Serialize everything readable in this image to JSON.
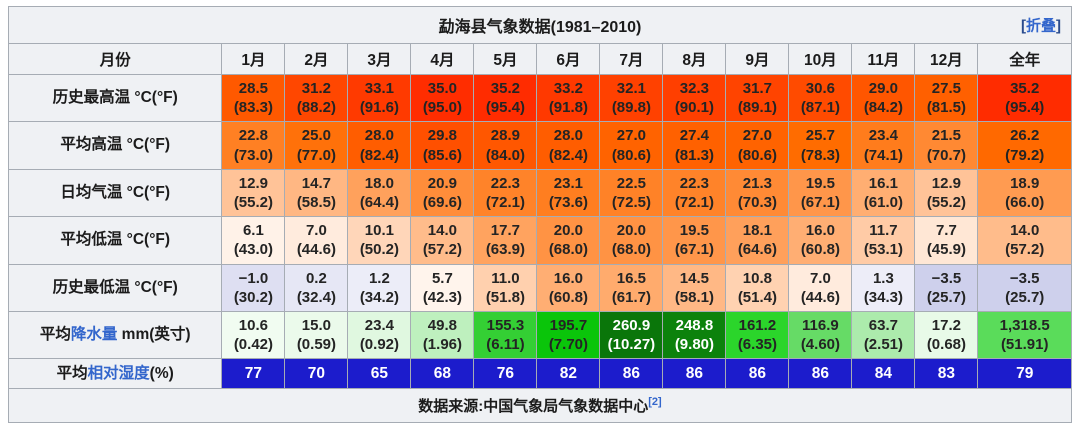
{
  "title": {
    "text": "勐海县气象数据(1981–2010)",
    "collapse_label": "折叠",
    "bracket_open": "[",
    "bracket_close": "]"
  },
  "header": {
    "month_label": "月份",
    "columns": [
      "1月",
      "2月",
      "3月",
      "4月",
      "5月",
      "6月",
      "7月",
      "8月",
      "9月",
      "10月",
      "11月",
      "12月",
      "全年"
    ]
  },
  "rows": [
    {
      "label": {
        "prefix": "历史最高温 °C(°F)"
      },
      "cells": [
        {
          "v": "28.5",
          "s": "(83.3)",
          "bg": "#FF5900"
        },
        {
          "v": "31.2",
          "s": "(88.2)",
          "bg": "#FF4700"
        },
        {
          "v": "33.1",
          "s": "(91.6)",
          "bg": "#FF3A00"
        },
        {
          "v": "35.0",
          "s": "(95.0)",
          "bg": "#FF2D00"
        },
        {
          "v": "35.2",
          "s": "(95.4)",
          "bg": "#FF2C00"
        },
        {
          "v": "33.2",
          "s": "(91.8)",
          "bg": "#FF3900"
        },
        {
          "v": "32.1",
          "s": "(89.8)",
          "bg": "#FF4100"
        },
        {
          "v": "32.3",
          "s": "(90.1)",
          "bg": "#FF3F00"
        },
        {
          "v": "31.7",
          "s": "(89.1)",
          "bg": "#FF4400"
        },
        {
          "v": "30.6",
          "s": "(87.1)",
          "bg": "#FF4B00"
        },
        {
          "v": "29.0",
          "s": "(84.2)",
          "bg": "#FF5600"
        },
        {
          "v": "27.5",
          "s": "(81.5)",
          "bg": "#FF6000"
        },
        {
          "v": "35.2",
          "s": "(95.4)",
          "bg": "#FF2C00"
        }
      ]
    },
    {
      "label": {
        "prefix": "平均高温 °C(°F)"
      },
      "cells": [
        {
          "v": "22.8",
          "s": "(73.0)",
          "bg": "#FF8023"
        },
        {
          "v": "25.0",
          "s": "(77.0)",
          "bg": "#FF710A"
        },
        {
          "v": "28.0",
          "s": "(82.4)",
          "bg": "#FF5D00"
        },
        {
          "v": "29.8",
          "s": "(85.6)",
          "bg": "#FF5000"
        },
        {
          "v": "28.9",
          "s": "(84.0)",
          "bg": "#FF5700"
        },
        {
          "v": "28.0",
          "s": "(82.4)",
          "bg": "#FF5D00"
        },
        {
          "v": "27.0",
          "s": "(80.6)",
          "bg": "#FF6300"
        },
        {
          "v": "27.4",
          "s": "(81.3)",
          "bg": "#FF6100"
        },
        {
          "v": "27.0",
          "s": "(80.6)",
          "bg": "#FF6300"
        },
        {
          "v": "25.7",
          "s": "(78.3)",
          "bg": "#FF6C00"
        },
        {
          "v": "23.4",
          "s": "(74.1)",
          "bg": "#FF7C1C"
        },
        {
          "v": "21.5",
          "s": "(70.7)",
          "bg": "#FF8933"
        },
        {
          "v": "26.2",
          "s": "(79.2)",
          "bg": "#FF6900"
        }
      ]
    },
    {
      "label": {
        "prefix": "日均气温 °C(°F)"
      },
      "cells": [
        {
          "v": "12.9",
          "s": "(55.2)",
          "bg": "#FFC398"
        },
        {
          "v": "14.7",
          "s": "(58.5)",
          "bg": "#FFB783"
        },
        {
          "v": "18.0",
          "s": "(64.4)",
          "bg": "#FFA15C"
        },
        {
          "v": "20.9",
          "s": "(69.6)",
          "bg": "#FF8D3A"
        },
        {
          "v": "22.3",
          "s": "(72.1)",
          "bg": "#FF8329"
        },
        {
          "v": "23.1",
          "s": "(73.6)",
          "bg": "#FF7E20"
        },
        {
          "v": "22.5",
          "s": "(72.5)",
          "bg": "#FF8227"
        },
        {
          "v": "22.3",
          "s": "(72.1)",
          "bg": "#FF8329"
        },
        {
          "v": "21.3",
          "s": "(70.3)",
          "bg": "#FF8A35"
        },
        {
          "v": "19.5",
          "s": "(67.1)",
          "bg": "#FF964A"
        },
        {
          "v": "16.1",
          "s": "(61.0)",
          "bg": "#FFAE72"
        },
        {
          "v": "12.9",
          "s": "(55.2)",
          "bg": "#FFC398"
        },
        {
          "v": "18.9",
          "s": "(66.0)",
          "bg": "#FF9B51"
        }
      ]
    },
    {
      "label": {
        "prefix": "平均低温 °C(°F)"
      },
      "cells": [
        {
          "v": "6.1",
          "s": "(43.0)",
          "bg": "#FFF2E8"
        },
        {
          "v": "7.0",
          "s": "(44.6)",
          "bg": "#FFEBDD"
        },
        {
          "v": "10.1",
          "s": "(50.2)",
          "bg": "#FFD6B9"
        },
        {
          "v": "14.0",
          "s": "(57.2)",
          "bg": "#FFBC8B"
        },
        {
          "v": "17.7",
          "s": "(63.9)",
          "bg": "#FFA35F"
        },
        {
          "v": "20.0",
          "s": "(68.0)",
          "bg": "#FF9344"
        },
        {
          "v": "20.0",
          "s": "(68.0)",
          "bg": "#FF9344"
        },
        {
          "v": "19.5",
          "s": "(67.1)",
          "bg": "#FF964A"
        },
        {
          "v": "18.1",
          "s": "(64.6)",
          "bg": "#FFA05B"
        },
        {
          "v": "16.0",
          "s": "(60.8)",
          "bg": "#FFAE73"
        },
        {
          "v": "11.7",
          "s": "(53.1)",
          "bg": "#FFCBA6"
        },
        {
          "v": "7.7",
          "s": "(45.9)",
          "bg": "#FFE7D5"
        },
        {
          "v": "14.0",
          "s": "(57.2)",
          "bg": "#FFBC8B"
        }
      ]
    },
    {
      "label": {
        "prefix": "历史最低温 °C(°F)"
      },
      "cells": [
        {
          "v": "−1.0",
          "s": "(30.2)",
          "bg": "#DEDFF2"
        },
        {
          "v": "0.2",
          "s": "(32.4)",
          "bg": "#E6E7F5"
        },
        {
          "v": "1.2",
          "s": "(34.2)",
          "bg": "#ECEDF8"
        },
        {
          "v": "5.7",
          "s": "(42.3)",
          "bg": "#FFF4EC"
        },
        {
          "v": "11.0",
          "s": "(51.8)",
          "bg": "#FFD0AE"
        },
        {
          "v": "16.0",
          "s": "(60.8)",
          "bg": "#FFAE73"
        },
        {
          "v": "16.5",
          "s": "(61.7)",
          "bg": "#FFAB6D"
        },
        {
          "v": "14.5",
          "s": "(58.1)",
          "bg": "#FFB885"
        },
        {
          "v": "10.8",
          "s": "(51.4)",
          "bg": "#FFD2B1"
        },
        {
          "v": "7.0",
          "s": "(44.6)",
          "bg": "#FFEBDD"
        },
        {
          "v": "1.3",
          "s": "(34.3)",
          "bg": "#EDEDF8"
        },
        {
          "v": "−3.5",
          "s": "(25.7)",
          "bg": "#CED0EC"
        },
        {
          "v": "−3.5",
          "s": "(25.7)",
          "bg": "#CED0EC"
        }
      ]
    },
    {
      "label": {
        "prefix": "平均",
        "link": "降水量",
        "suffix": " mm(英寸)"
      },
      "cells": [
        {
          "v": "10.6",
          "s": "(0.42)",
          "bg": "#F1FCF1"
        },
        {
          "v": "15.0",
          "s": "(0.59)",
          "bg": "#EBFAEB"
        },
        {
          "v": "23.4",
          "s": "(0.92)",
          "bg": "#E0F8E0"
        },
        {
          "v": "49.8",
          "s": "(1.96)",
          "bg": "#BEF0BE"
        },
        {
          "v": "155.3",
          "s": "(6.11)",
          "bg": "#34CF34"
        },
        {
          "v": "195.7",
          "s": "(7.70)",
          "bg": "#0AC50A"
        },
        {
          "v": "260.9",
          "s": "(10.27)",
          "bg": "#0A760A",
          "fg": "#FFFFFF"
        },
        {
          "v": "248.8",
          "s": "(9.80)",
          "bg": "#0C820C",
          "fg": "#FFFFFF"
        },
        {
          "v": "161.2",
          "s": "(6.35)",
          "bg": "#2BD52B"
        },
        {
          "v": "116.9",
          "s": "(4.60)",
          "bg": "#66DB66"
        },
        {
          "v": "63.7",
          "s": "(2.51)",
          "bg": "#ACEBAC"
        },
        {
          "v": "17.2",
          "s": "(0.68)",
          "bg": "#E8FAE8"
        },
        {
          "v": "1,318.5",
          "s": "(51.91)",
          "bg": "#5ADC5A"
        }
      ]
    },
    {
      "label": {
        "prefix": "平均",
        "link": "相对湿度",
        "suffix": "(%)"
      },
      "cells": [
        {
          "v": "77",
          "bg": "#1C1CCC",
          "fg": "#FFFFFF"
        },
        {
          "v": "70",
          "bg": "#1C1CCC",
          "fg": "#FFFFFF"
        },
        {
          "v": "65",
          "bg": "#1C1CCC",
          "fg": "#FFFFFF"
        },
        {
          "v": "68",
          "bg": "#1C1CCC",
          "fg": "#FFFFFF"
        },
        {
          "v": "76",
          "bg": "#1C1CCC",
          "fg": "#FFFFFF"
        },
        {
          "v": "82",
          "bg": "#1C1CCC",
          "fg": "#FFFFFF"
        },
        {
          "v": "86",
          "bg": "#1C1CCC",
          "fg": "#FFFFFF"
        },
        {
          "v": "86",
          "bg": "#1C1CCC",
          "fg": "#FFFFFF"
        },
        {
          "v": "86",
          "bg": "#1C1CCC",
          "fg": "#FFFFFF"
        },
        {
          "v": "86",
          "bg": "#1C1CCC",
          "fg": "#FFFFFF"
        },
        {
          "v": "84",
          "bg": "#1C1CCC",
          "fg": "#FFFFFF"
        },
        {
          "v": "83",
          "bg": "#1C1CCC",
          "fg": "#FFFFFF"
        },
        {
          "v": "79",
          "bg": "#1C1CCC",
          "fg": "#FFFFFF"
        }
      ]
    }
  ],
  "footer": {
    "text": "数据来源:中国气象局气象数据中心",
    "ref_label": "[2]"
  },
  "colors": {
    "link": "#3366CC",
    "header_bg": "#EFF1F4",
    "border": "#A6ACB4",
    "text": "#1B1B1B",
    "humidity_bg": "#1C1CCC",
    "record_high_annual_bg": "#FF2C00",
    "precip_max_bg": "#0A760A"
  },
  "chart_data": {
    "type": "table",
    "title": "勐海县气象数据(1981–2010)",
    "categories": [
      "1月",
      "2月",
      "3月",
      "4月",
      "5月",
      "6月",
      "7月",
      "8月",
      "9月",
      "10月",
      "11月",
      "12月",
      "全年"
    ],
    "series": [
      {
        "name": "历史最高温 °C",
        "values": [
          28.5,
          31.2,
          33.1,
          35.0,
          35.2,
          33.2,
          32.1,
          32.3,
          31.7,
          30.6,
          29.0,
          27.5,
          35.2
        ]
      },
      {
        "name": "历史最高温 °F",
        "values": [
          83.3,
          88.2,
          91.6,
          95.0,
          95.4,
          91.8,
          89.8,
          90.1,
          89.1,
          87.1,
          84.2,
          81.5,
          95.4
        ]
      },
      {
        "name": "平均高温 °C",
        "values": [
          22.8,
          25.0,
          28.0,
          29.8,
          28.9,
          28.0,
          27.0,
          27.4,
          27.0,
          25.7,
          23.4,
          21.5,
          26.2
        ]
      },
      {
        "name": "平均高温 °F",
        "values": [
          73.0,
          77.0,
          82.4,
          85.6,
          84.0,
          82.4,
          80.6,
          81.3,
          80.6,
          78.3,
          74.1,
          70.7,
          79.2
        ]
      },
      {
        "name": "日均气温 °C",
        "values": [
          12.9,
          14.7,
          18.0,
          20.9,
          22.3,
          23.1,
          22.5,
          22.3,
          21.3,
          19.5,
          16.1,
          12.9,
          18.9
        ]
      },
      {
        "name": "日均气温 °F",
        "values": [
          55.2,
          58.5,
          64.4,
          69.6,
          72.1,
          73.6,
          72.5,
          72.1,
          70.3,
          67.1,
          61.0,
          55.2,
          66.0
        ]
      },
      {
        "name": "平均低温 °C",
        "values": [
          6.1,
          7.0,
          10.1,
          14.0,
          17.7,
          20.0,
          20.0,
          19.5,
          18.1,
          16.0,
          11.7,
          7.7,
          14.0
        ]
      },
      {
        "name": "平均低温 °F",
        "values": [
          43.0,
          44.6,
          50.2,
          57.2,
          63.9,
          68.0,
          68.0,
          67.1,
          64.6,
          60.8,
          53.1,
          45.9,
          57.2
        ]
      },
      {
        "name": "历史最低温 °C",
        "values": [
          -1.0,
          0.2,
          1.2,
          5.7,
          11.0,
          16.0,
          16.5,
          14.5,
          10.8,
          7.0,
          1.3,
          -3.5,
          -3.5
        ]
      },
      {
        "name": "历史最低温 °F",
        "values": [
          30.2,
          32.4,
          34.2,
          42.3,
          51.8,
          60.8,
          61.7,
          58.1,
          51.4,
          44.6,
          34.3,
          25.7,
          25.7
        ]
      },
      {
        "name": "平均降水量 mm",
        "values": [
          10.6,
          15.0,
          23.4,
          49.8,
          155.3,
          195.7,
          260.9,
          248.8,
          161.2,
          116.9,
          63.7,
          17.2,
          1318.5
        ]
      },
      {
        "name": "平均降水量 英寸",
        "values": [
          0.42,
          0.59,
          0.92,
          1.96,
          6.11,
          7.7,
          10.27,
          9.8,
          6.35,
          4.6,
          2.51,
          0.68,
          51.91
        ]
      },
      {
        "name": "平均相对湿度 %",
        "values": [
          77,
          70,
          65,
          68,
          76,
          82,
          86,
          86,
          86,
          86,
          84,
          83,
          79
        ]
      }
    ],
    "source": "数据来源:中国气象局气象数据中心 [2]"
  }
}
